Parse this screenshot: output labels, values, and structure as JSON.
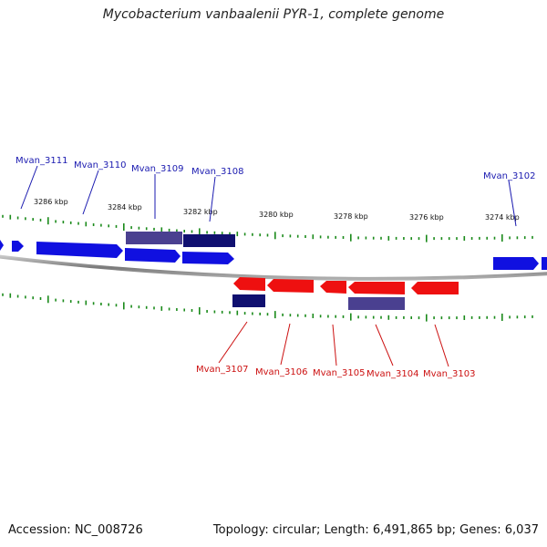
{
  "title": "Mycobacterium vanbaalenii PYR-1, complete genome",
  "footer": {
    "accession": "Accession: NC_008726",
    "summary": "Topology: circular; Length: 6,491,865 bp; Genes: 6,037"
  },
  "colors": {
    "forward_gene": "#1010e0",
    "reverse_gene": "#ee1010",
    "highlight_dark": "#101070",
    "highlight_mid": "#4a4090",
    "tick": "#1a8a1a",
    "backbone": "#8a8a8a",
    "label_forward": "#1a1ab0",
    "label_reverse": "#cc1010"
  },
  "kbp_ticks": [
    "3286 kbp",
    "3284 kbp",
    "3282 kbp",
    "3280 kbp",
    "3278 kbp",
    "3276 kbp",
    "3274 kbp"
  ],
  "forward_labels": [
    "Mvan_3111",
    "Mvan_3110",
    "Mvan_3109",
    "Mvan_3108",
    "Mvan_3102"
  ],
  "reverse_labels": [
    "Mvan_3107",
    "Mvan_3106",
    "Mvan_3105",
    "Mvan_3104",
    "Mvan_3103"
  ]
}
